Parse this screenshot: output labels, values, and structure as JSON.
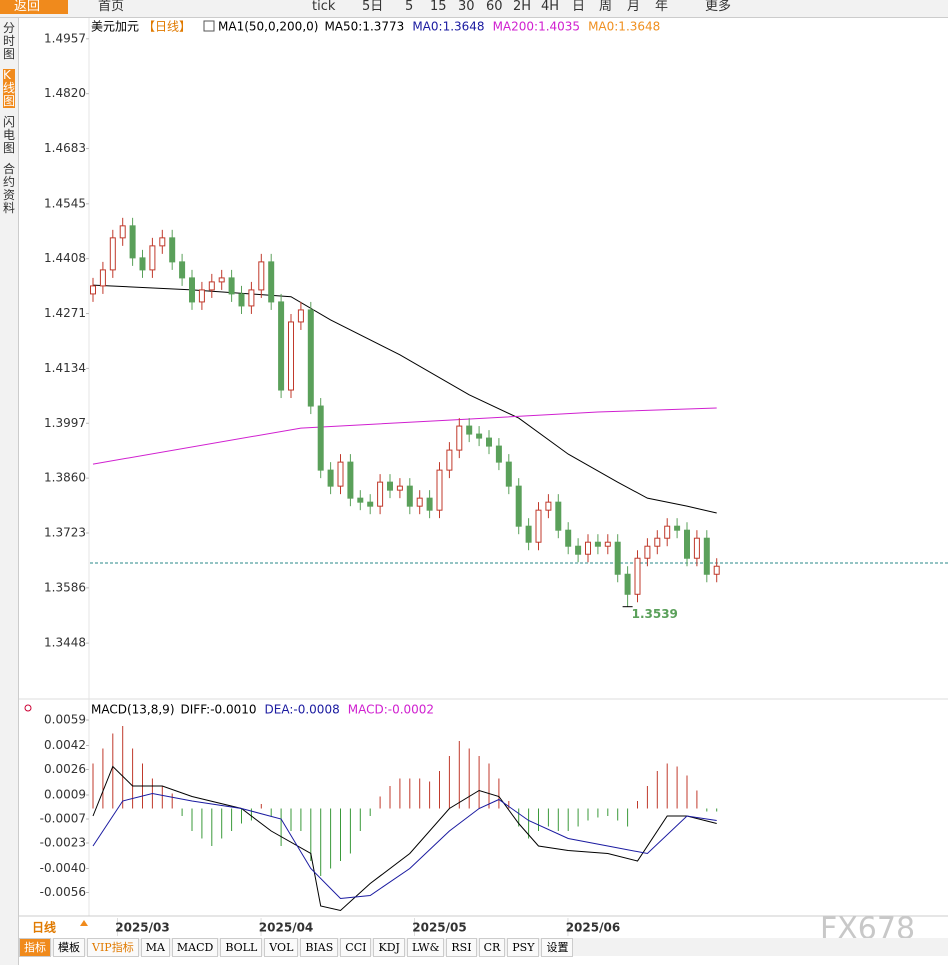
{
  "toolbar": {
    "back": "返回",
    "home": "首页",
    "tick": "tick",
    "periods": [
      "5日",
      "5",
      "15",
      "30",
      "60",
      "2H",
      "4H",
      "日",
      "周",
      "月",
      "年"
    ],
    "more": "更多"
  },
  "sidebar": [
    "分时图",
    "K线图",
    "闪电图",
    "合约资料"
  ],
  "bottom_bar": {
    "period": "日线",
    "tabs": [
      "指标",
      "模板",
      "VIP指标",
      "MA",
      "MACD",
      "BOLL",
      "VOL",
      "BIAS",
      "CCI",
      "KDJ",
      "LW&",
      "RSI",
      "CR",
      "PSY",
      "设置"
    ]
  },
  "watermark": "FX678",
  "chart_data": [
    {
      "type": "candlestick",
      "title": "美元加元",
      "subtitle": "【日线】",
      "indicator": "MA1(50,0,200,0)",
      "legend": [
        {
          "text": "MA50:1.3773",
          "color": "#000000"
        },
        {
          "text": "MA0:1.3648",
          "color": "#1a1aa0"
        },
        {
          "text": "MA200:1.4035",
          "color": "#d020d0"
        },
        {
          "text": "MA0:1.3648",
          "color": "#f09020"
        }
      ],
      "up_color": "#c0392b",
      "down_color": "#5aa05a",
      "candles": {
        "open": [
          1.432,
          1.434,
          1.438,
          1.446,
          1.449,
          1.441,
          1.438,
          1.444,
          1.446,
          1.44,
          1.436,
          1.43,
          1.433,
          1.435,
          1.436,
          1.432,
          1.429,
          1.433,
          1.44,
          1.43,
          1.408,
          1.425,
          1.428,
          1.404,
          1.388,
          1.384,
          1.39,
          1.381,
          1.38,
          1.379,
          1.385,
          1.383,
          1.384,
          1.379,
          1.381,
          1.378,
          1.388,
          1.393,
          1.399,
          1.397,
          1.396,
          1.394,
          1.39,
          1.384,
          1.374,
          1.37,
          1.378,
          1.38,
          1.373,
          1.369,
          1.367,
          1.37,
          1.369,
          1.37,
          1.362,
          1.357,
          1.366,
          1.369,
          1.371,
          1.374,
          1.373,
          1.366,
          1.371,
          1.362
        ],
        "high": [
          1.436,
          1.44,
          1.448,
          1.451,
          1.451,
          1.443,
          1.446,
          1.448,
          1.448,
          1.442,
          1.438,
          1.435,
          1.437,
          1.438,
          1.438,
          1.434,
          1.435,
          1.442,
          1.442,
          1.432,
          1.427,
          1.43,
          1.43,
          1.406,
          1.39,
          1.392,
          1.392,
          1.383,
          1.382,
          1.387,
          1.387,
          1.386,
          1.386,
          1.383,
          1.383,
          1.39,
          1.395,
          1.401,
          1.401,
          1.399,
          1.398,
          1.396,
          1.392,
          1.386,
          1.376,
          1.38,
          1.382,
          1.382,
          1.375,
          1.371,
          1.372,
          1.372,
          1.372,
          1.372,
          1.364,
          1.368,
          1.371,
          1.373,
          1.376,
          1.376,
          1.375,
          1.373,
          1.373,
          1.366
        ],
        "low": [
          1.43,
          1.432,
          1.436,
          1.444,
          1.439,
          1.436,
          1.436,
          1.442,
          1.438,
          1.434,
          1.428,
          1.428,
          1.431,
          1.433,
          1.43,
          1.427,
          1.427,
          1.431,
          1.428,
          1.406,
          1.406,
          1.423,
          1.402,
          1.386,
          1.382,
          1.382,
          1.379,
          1.378,
          1.377,
          1.377,
          1.381,
          1.381,
          1.377,
          1.377,
          1.376,
          1.376,
          1.386,
          1.391,
          1.395,
          1.394,
          1.392,
          1.388,
          1.382,
          1.372,
          1.368,
          1.368,
          1.376,
          1.371,
          1.367,
          1.365,
          1.365,
          1.367,
          1.367,
          1.36,
          1.3539,
          1.355,
          1.364,
          1.367,
          1.369,
          1.371,
          1.364,
          1.364,
          1.36,
          1.36
        ],
        "close": [
          1.434,
          1.438,
          1.446,
          1.449,
          1.441,
          1.438,
          1.444,
          1.446,
          1.44,
          1.436,
          1.43,
          1.433,
          1.435,
          1.436,
          1.432,
          1.429,
          1.433,
          1.44,
          1.43,
          1.408,
          1.425,
          1.428,
          1.404,
          1.388,
          1.384,
          1.39,
          1.381,
          1.38,
          1.379,
          1.385,
          1.383,
          1.384,
          1.379,
          1.381,
          1.378,
          1.388,
          1.393,
          1.399,
          1.397,
          1.396,
          1.394,
          1.39,
          1.384,
          1.374,
          1.37,
          1.378,
          1.38,
          1.373,
          1.369,
          1.367,
          1.37,
          1.369,
          1.37,
          1.362,
          1.357,
          1.366,
          1.369,
          1.371,
          1.374,
          1.373,
          1.366,
          1.371,
          1.362,
          1.364
        ]
      },
      "lines": [
        {
          "color": "#000000",
          "x": [
            0,
            10,
            20,
            24,
            31,
            38,
            43,
            48,
            53,
            56,
            60,
            63
          ],
          "values": [
            1.4342,
            1.433,
            1.4313,
            1.4255,
            1.4168,
            1.4068,
            1.401,
            1.392,
            1.385,
            1.381,
            1.379,
            1.3773
          ]
        },
        {
          "color": "#d020d0",
          "x": [
            0,
            21,
            36,
            51,
            63
          ],
          "values": [
            1.3895,
            1.3985,
            1.4005,
            1.4025,
            1.4035
          ]
        }
      ],
      "reference_line": {
        "value": 1.3648,
        "color": "#2a8a8a"
      },
      "low_label_index": 54,
      "ylim": [
        1.3311,
        1.4979
      ],
      "yticks": [
        1.4957,
        {
          "value": 1.482,
          "label": "1.4820"
        },
        1.4683,
        1.4545,
        1.4408,
        1.4271,
        1.4134,
        1.3997,
        {
          "value": 1.386,
          "label": "1.3860"
        },
        1.3723,
        1.3586,
        1.3448
      ],
      "xticks": [
        {
          "value": 5,
          "label": "2025/03"
        },
        {
          "value": 19.5,
          "label": "2025/04"
        },
        {
          "value": 35,
          "label": "2025/05"
        },
        {
          "value": 50.5,
          "label": "2025/06"
        }
      ]
    },
    {
      "type": "macd",
      "title": "MACD(13,8,9)",
      "legend": [
        {
          "text": "DIFF:-0.0010",
          "color": "#000000"
        },
        {
          "text": "DEA:-0.0008",
          "color": "#1a1aa0"
        },
        {
          "text": "MACD:-0.0002",
          "color": "#d020d0"
        }
      ],
      "up_color": "#c0392b",
      "down_color": "#3a9a3a",
      "histogram": [
        0.003,
        0.004,
        0.005,
        0.0055,
        0.004,
        0.003,
        0.002,
        0.0015,
        0.001,
        -0.0005,
        -0.0015,
        -0.002,
        -0.0025,
        -0.002,
        -0.0015,
        -0.001,
        -0.0008,
        0.0003,
        -0.0005,
        -0.0025,
        -0.0015,
        -0.0015,
        -0.0035,
        -0.0045,
        -0.004,
        -0.0035,
        -0.003,
        -0.0015,
        -0.0005,
        0.0008,
        0.0015,
        0.002,
        0.002,
        0.002,
        0.0018,
        0.0025,
        0.0035,
        0.0045,
        0.004,
        0.0035,
        0.003,
        0.002,
        0.0005,
        -0.0012,
        -0.002,
        -0.0015,
        -0.0012,
        -0.0015,
        -0.0015,
        -0.0012,
        -0.0008,
        -0.0006,
        -0.0005,
        -0.0008,
        -0.0012,
        0.0005,
        0.0015,
        0.0025,
        0.003,
        0.0028,
        0.0022,
        0.0012,
        -0.0002,
        -0.0002
      ],
      "lines": [
        {
          "color": "#000000",
          "x": [
            0,
            2,
            4,
            7,
            10,
            15,
            18,
            22,
            23,
            25,
            28,
            32,
            36,
            39,
            41,
            43,
            45,
            48,
            52,
            55,
            58,
            60,
            63
          ],
          "values": [
            -0.0005,
            0.0028,
            0.0015,
            0.0015,
            0.0008,
            0.0,
            -0.0015,
            -0.003,
            -0.0065,
            -0.0068,
            -0.005,
            -0.003,
            0.0,
            0.0012,
            0.0008,
            -0.001,
            -0.0025,
            -0.0028,
            -0.003,
            -0.0035,
            -0.0005,
            -0.0005,
            -0.001
          ]
        },
        {
          "color": "#1a1aa0",
          "x": [
            0,
            3,
            6,
            10,
            15,
            19,
            22,
            25,
            28,
            32,
            36,
            39,
            41,
            44,
            48,
            52,
            56,
            60,
            63
          ],
          "values": [
            -0.0025,
            0.0005,
            0.001,
            0.0005,
            0.0,
            -0.0007,
            -0.004,
            -0.006,
            -0.0058,
            -0.004,
            -0.0015,
            0.0,
            0.0006,
            -0.0008,
            -0.002,
            -0.0025,
            -0.003,
            -0.0005,
            -0.0008
          ]
        }
      ],
      "ylim": [
        -0.0071,
        0.0069
      ],
      "yticks": [
        0.0059,
        0.0042,
        0.0026,
        0.0009,
        -0.0007,
        -0.0023,
        {
          "value": -0.004,
          "label": "-0.0040"
        },
        -0.0056
      ]
    }
  ]
}
